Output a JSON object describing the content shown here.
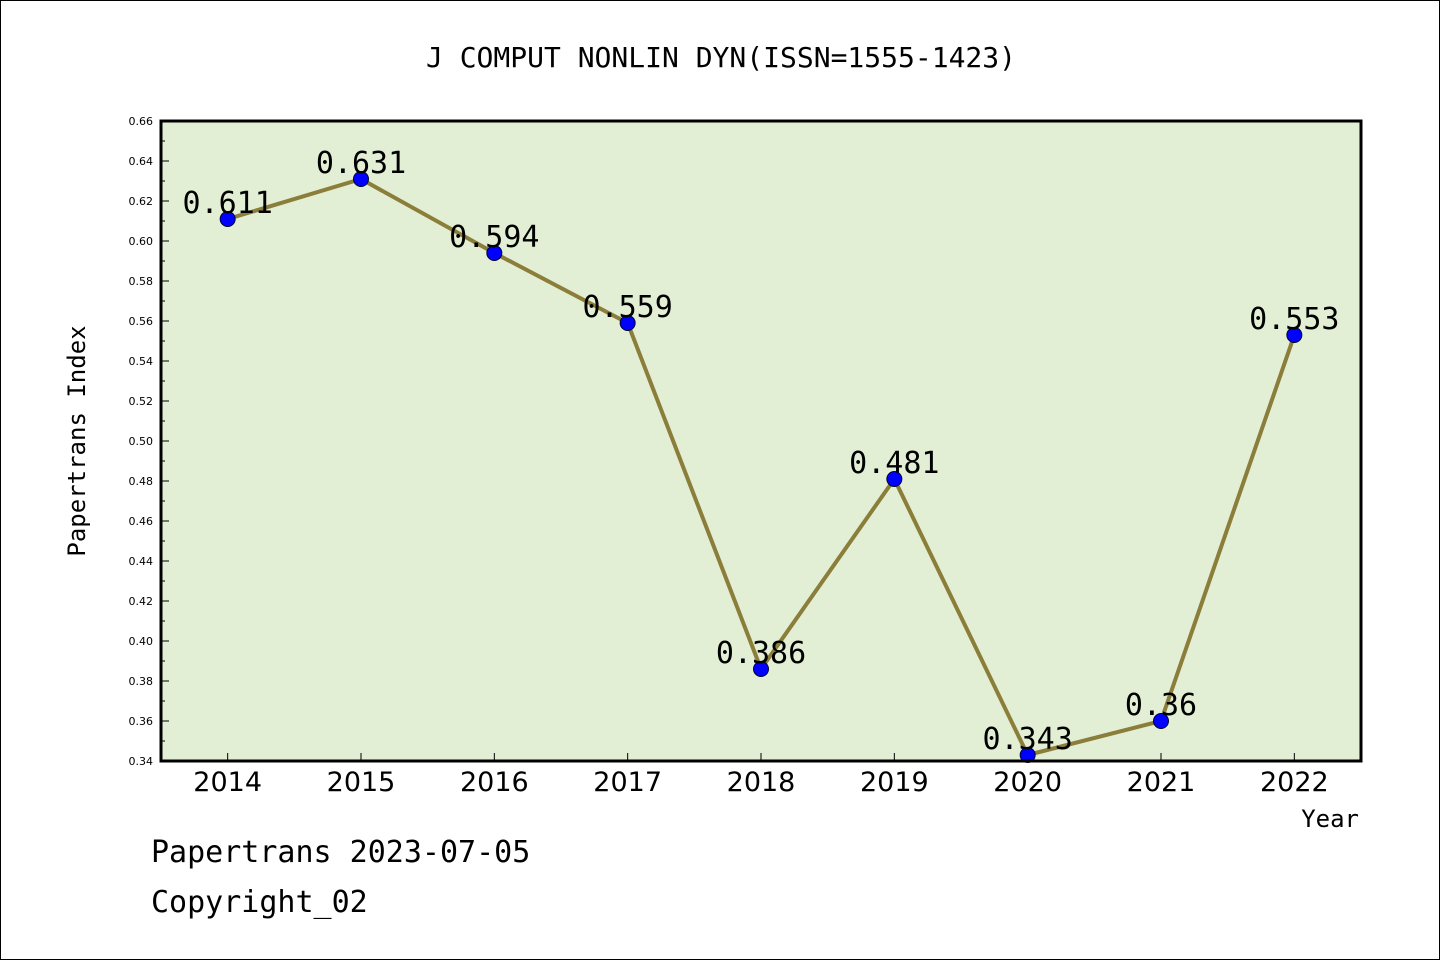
{
  "chart_data": {
    "type": "line",
    "title": "J COMPUT NONLIN DYN(ISSN=1555-1423)",
    "xlabel": "Year",
    "ylabel": "Papertrans Index",
    "categories": [
      "2014",
      "2015",
      "2016",
      "2017",
      "2018",
      "2019",
      "2020",
      "2021",
      "2022"
    ],
    "series": [
      {
        "values": [
          0.611,
          0.631,
          0.594,
          0.559,
          0.386,
          0.481,
          0.343,
          0.36,
          0.553
        ],
        "data_labels": [
          "0.611",
          "0.631",
          "0.594",
          "0.559",
          "0.386",
          "0.481",
          "0.343",
          "0.36",
          "0.553"
        ],
        "line_color": "#8b7d3a",
        "marker_color": "#0000ff"
      }
    ],
    "ylim": [
      0.34,
      0.66
    ],
    "yticks": [
      "0.34",
      "0.36",
      "0.38",
      "0.40",
      "0.42",
      "0.44",
      "0.46",
      "0.48",
      "0.50",
      "0.52",
      "0.54",
      "0.56",
      "0.58",
      "0.60",
      "0.62",
      "0.64",
      "0.66"
    ],
    "grid": false,
    "legend": "none",
    "plot_background": "#e2efd4"
  },
  "footer": {
    "line1": "Papertrans 2023-07-05",
    "line2": "Copyright_02"
  }
}
